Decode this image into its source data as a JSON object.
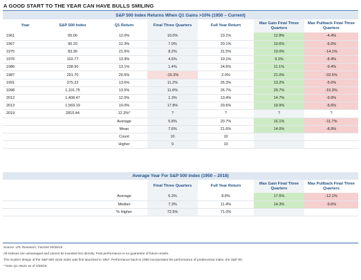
{
  "headline": "A GOOD START TO THE YEAR CAN HAVE BULLS SMILING",
  "table1": {
    "title": "S&P 500 Index Returns When Q1 Gains >10% (1950 – Current)",
    "headers": [
      "Year",
      "S&P 500 Index",
      "Q1 Return",
      "Final Three Quarters",
      "Full Year Return",
      "Max Gain Final Three Quarters",
      "Max Pullback Final Three Quarters"
    ],
    "rows": [
      [
        "1961",
        "65.06",
        "12.0%",
        "10.0%",
        "23.1%",
        "12.8%",
        "-4.4%"
      ],
      [
        "1967",
        "90.20",
        "12.3%",
        "7.0%",
        "20.1%",
        "10.6%",
        "-6.6%"
      ],
      [
        "1975",
        "83.36",
        "21.6%",
        "8.2%",
        "31.5%",
        "19.0%",
        "-14.1%"
      ],
      [
        "1976",
        "102.77",
        "13.9%",
        "4.6%",
        "19.1%",
        "9.3%",
        "-8.4%"
      ],
      [
        "1986",
        "238.90",
        "13.1%",
        "1.4%",
        "14.6%",
        "11.1%",
        "-9.4%"
      ],
      [
        "1987",
        "291.70",
        "20.5%",
        "-15.3%",
        "2.0%",
        "21.0%",
        "-33.5%"
      ],
      [
        "1991",
        "375.22",
        "13.6%",
        "11.2%",
        "26.3%",
        "13.2%",
        "-5.6%"
      ],
      [
        "1998",
        "1,101.75",
        "13.5%",
        "11.6%",
        "26.7%",
        "29.7%",
        "-19.3%"
      ],
      [
        "2012",
        "1,408.47",
        "12.0%",
        "1.3%",
        "13.4%",
        "14.7%",
        "-9.9%"
      ],
      [
        "2013",
        "1,569.19",
        "10.0%",
        "17.8%",
        "29.6%",
        "19.9%",
        "-5.6%"
      ],
      [
        "2019",
        "2815.44",
        "12.3%*",
        "?",
        "?",
        "?",
        "?"
      ]
    ],
    "summary": [
      [
        "Average",
        "5.8%",
        "20.7%",
        "16.1%",
        "-11.7%"
      ],
      [
        "Mean",
        "7.6%",
        "21.6%",
        "14.0%",
        "-8.9%"
      ],
      [
        "Count",
        "10",
        "10",
        "",
        ""
      ],
      [
        "Higher",
        "9",
        "10",
        "",
        ""
      ]
    ]
  },
  "table2": {
    "title": "Average Year For S&P 500 Index (1950 – 2018)",
    "headers": [
      "Final Three Quarters",
      "Full Year Return",
      "Max Gain Final Three Quarters",
      "Max Pullback Final Three Quarters"
    ],
    "rows": [
      [
        "Average",
        "6.3%",
        "8.8%",
        "17.5%",
        "-12.1%"
      ],
      [
        "Median",
        "7.3%",
        "11.4%",
        "14.3%",
        "-9.6%"
      ],
      [
        "% Higher",
        "72.5%",
        "71.0%",
        "",
        ""
      ]
    ]
  },
  "notes": [
    "Source: LPL Research, FactSet 03/28/19",
    "All indexes are unmanaged and cannot be invested into directly. Past performance is no guarantee of future results.",
    "The modern design of the S&P 500 stock index was first launched in 1957. Performance back to 1950 incorporates the performance of predecessor index, the S&P 90.",
    "* Note Q1 return as of 3/28/19"
  ],
  "colors": {
    "accent_blue": "#1f4f86",
    "title_bar": "#dfe7f1",
    "highlight_green": "#ccebc4",
    "highlight_red": "#f6cfcf",
    "shaded_column": "#f0f3f6"
  }
}
